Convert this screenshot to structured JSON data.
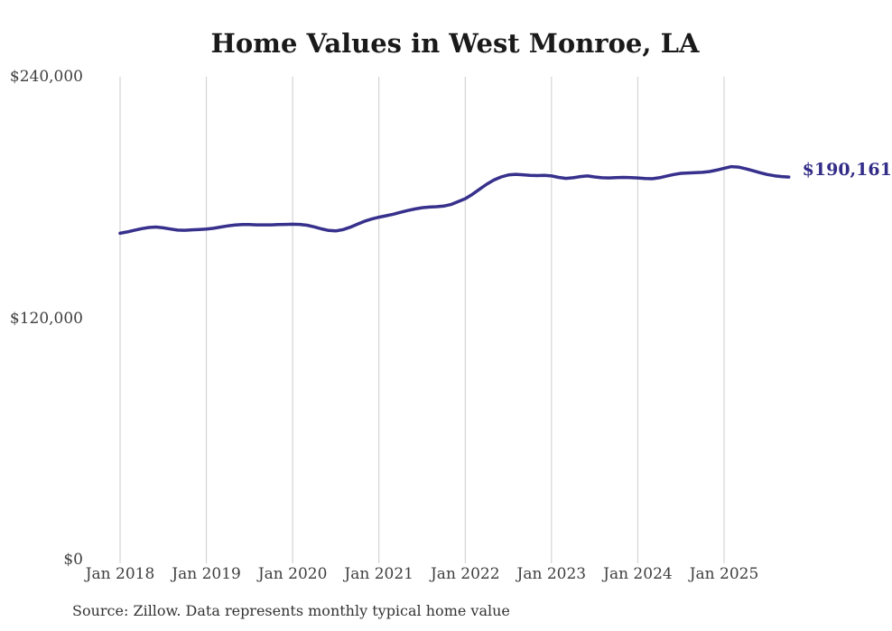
{
  "chart": {
    "title": "Home Values in West Monroe, LA",
    "end_label": "$190,161",
    "source": "Source: Zillow. Data represents monthly typical home value",
    "line_color": "#37308c",
    "label_color": "#332d87",
    "grid_color": "#cccccc"
  },
  "chart_data": {
    "type": "line",
    "title": "Home Values in West Monroe, LA",
    "xlabel": "",
    "ylabel": "",
    "x_start": "2018-01",
    "x_end": "2025-10",
    "frequency": "monthly",
    "x_tick_labels": [
      "Jan 2018",
      "Jan 2019",
      "Jan 2020",
      "Jan 2021",
      "Jan 2022",
      "Jan 2023",
      "Jan 2024",
      "Jan 2025"
    ],
    "y_tick_labels": [
      "$240,000",
      "$120,000",
      "$0"
    ],
    "y_tick_values": [
      240000,
      120000,
      0
    ],
    "ylim": [
      0,
      240000
    ],
    "grid": "vertical-only",
    "legend": "none",
    "last_value_label": "$190,161",
    "series": [
      {
        "name": "Typical home value",
        "values": [
          162200,
          162900,
          163700,
          164500,
          165100,
          165300,
          164900,
          164300,
          163800,
          163700,
          163900,
          164100,
          164300,
          164700,
          165300,
          165900,
          166300,
          166500,
          166500,
          166400,
          166400,
          166400,
          166500,
          166600,
          166700,
          166600,
          166200,
          165400,
          164400,
          163600,
          163400,
          164000,
          165200,
          166700,
          168200,
          169300,
          170200,
          170900,
          171700,
          172600,
          173500,
          174300,
          174900,
          175200,
          175400,
          175700,
          176500,
          177900,
          179400,
          181600,
          184100,
          186600,
          188700,
          190200,
          191200,
          191500,
          191300,
          191000,
          190900,
          191000,
          190700,
          190000,
          189500,
          189800,
          190400,
          190700,
          190200,
          189800,
          189700,
          189900,
          190000,
          189900,
          189700,
          189400,
          189300,
          189800,
          190600,
          191400,
          192000,
          192200,
          192300,
          192500,
          192900,
          193600,
          194500,
          195300,
          195100,
          194300,
          193300,
          192300,
          191400,
          190800,
          190400,
          190161
        ]
      }
    ]
  }
}
